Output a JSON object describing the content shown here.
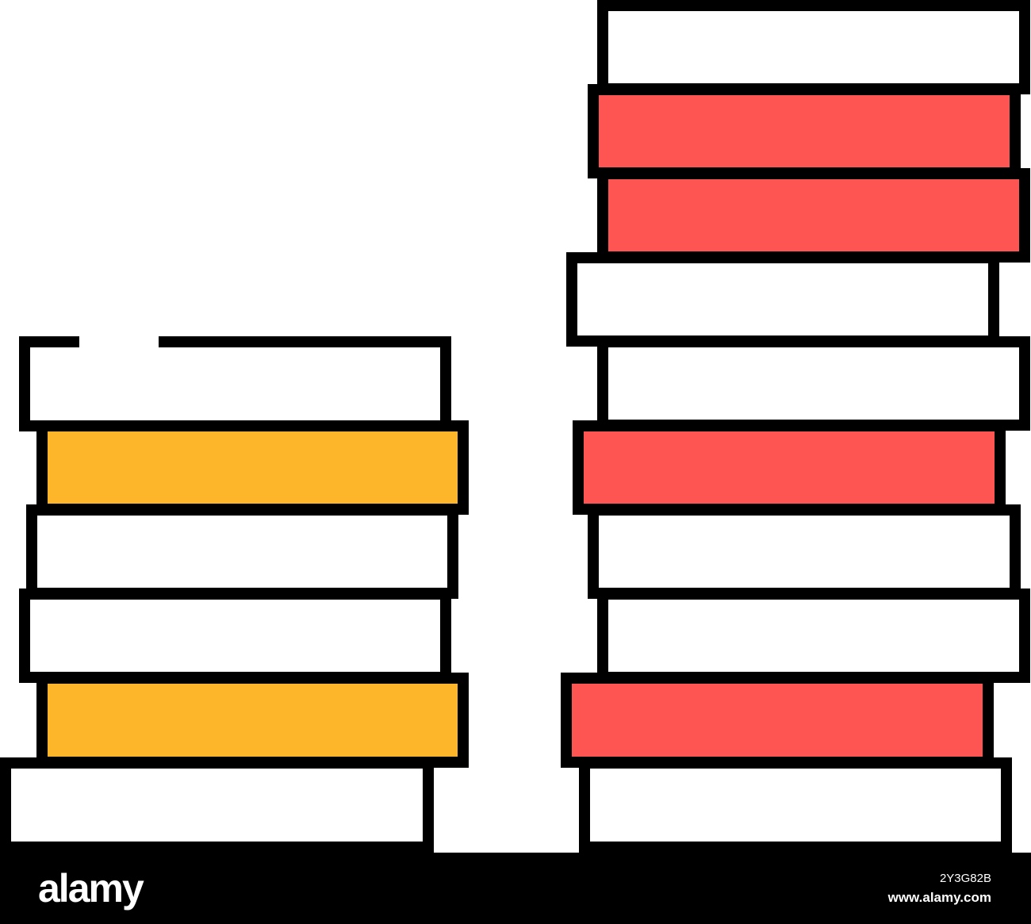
{
  "watermark": {
    "brand": "alamy",
    "image_id": "2Y3G82B",
    "url": "www.alamy.com"
  }
}
